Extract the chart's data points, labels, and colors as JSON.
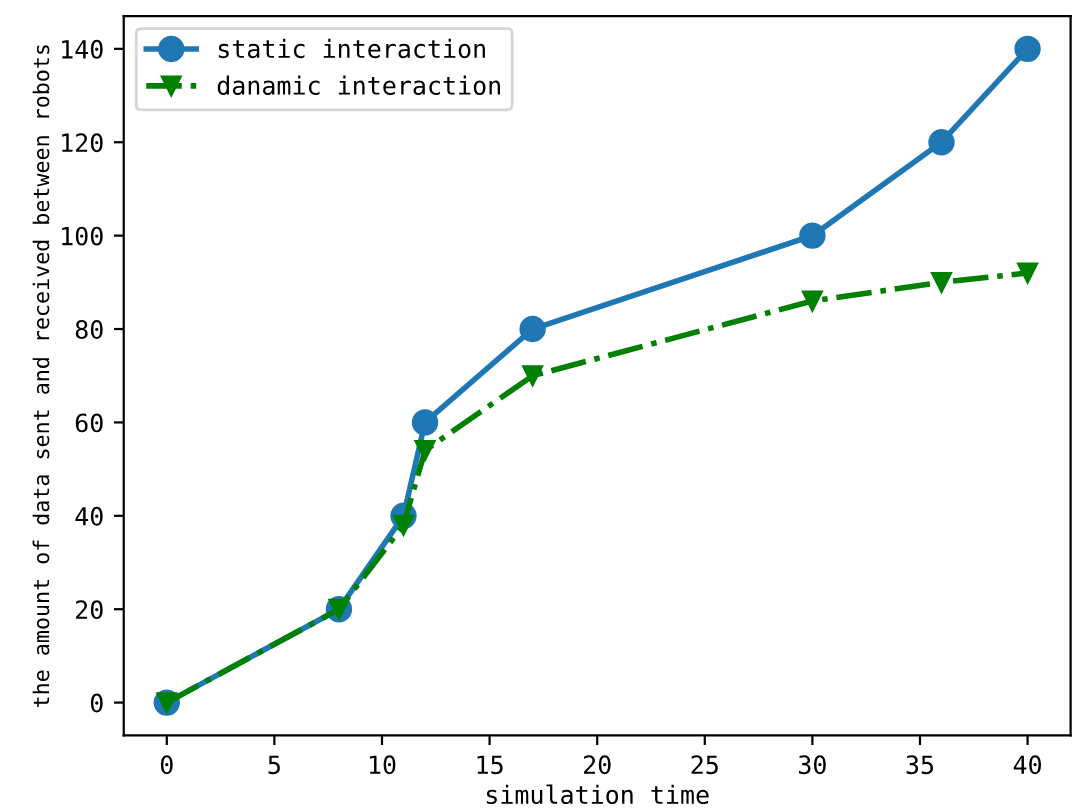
{
  "chart_data": {
    "type": "line",
    "xlabel": "simulation time",
    "ylabel": "the amount of data sent and received between robots",
    "x": [
      0,
      8,
      11,
      12,
      17,
      30,
      36,
      40
    ],
    "series": [
      {
        "name": "static interaction",
        "color": "#1f77b4",
        "marker": "circle",
        "line_style": "solid",
        "values": [
          0,
          20,
          40,
          60,
          80,
          100,
          120,
          140
        ]
      },
      {
        "name": "danamic interaction",
        "color": "#008000",
        "marker": "triangle",
        "line_style": "dashdot",
        "values": [
          0,
          20,
          38,
          54,
          70,
          86,
          90,
          92
        ]
      }
    ],
    "xlim": [
      -2,
      42
    ],
    "xticks": [
      0,
      5,
      10,
      15,
      20,
      25,
      30,
      35,
      40
    ],
    "ylim": [
      -7,
      147
    ],
    "yticks": [
      0,
      20,
      40,
      60,
      80,
      100,
      120,
      140
    ],
    "grid": false,
    "legend": "top left"
  }
}
